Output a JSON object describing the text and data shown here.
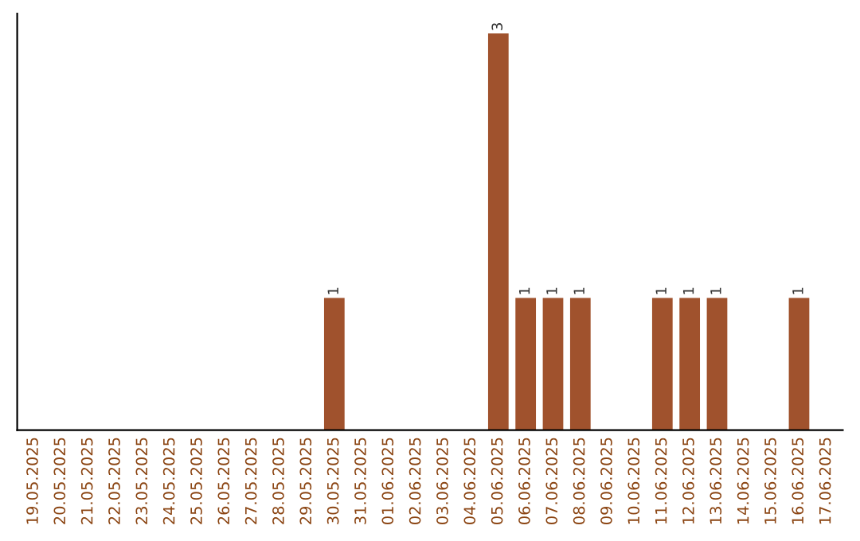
{
  "chart_data": {
    "type": "bar",
    "categories": [
      "19.05.2025",
      "20.05.2025",
      "21.05.2025",
      "22.05.2025",
      "23.05.2025",
      "24.05.2025",
      "25.05.2025",
      "26.05.2025",
      "27.05.2025",
      "28.05.2025",
      "29.05.2025",
      "30.05.2025",
      "31.05.2025",
      "01.06.2025",
      "02.06.2025",
      "03.06.2025",
      "04.06.2025",
      "05.06.2025",
      "06.06.2025",
      "07.06.2025",
      "08.06.2025",
      "09.06.2025",
      "10.06.2025",
      "11.06.2025",
      "12.06.2025",
      "13.06.2025",
      "14.06.2025",
      "15.06.2025",
      "16.06.2025",
      "17.06.2025"
    ],
    "values": [
      null,
      null,
      null,
      null,
      null,
      null,
      null,
      null,
      null,
      null,
      null,
      1,
      null,
      null,
      null,
      null,
      null,
      3,
      1,
      1,
      1,
      null,
      null,
      1,
      1,
      1,
      null,
      null,
      1,
      null
    ],
    "value_labels": [
      null,
      null,
      null,
      null,
      null,
      null,
      null,
      null,
      null,
      null,
      null,
      "1",
      null,
      null,
      null,
      null,
      null,
      "3",
      "1",
      "1",
      "1",
      null,
      null,
      "1",
      "1",
      "1",
      null,
      null,
      "1",
      null
    ],
    "color": "#a0522d",
    "tick_labels": "x",
    "grid": false,
    "legend": false
  }
}
